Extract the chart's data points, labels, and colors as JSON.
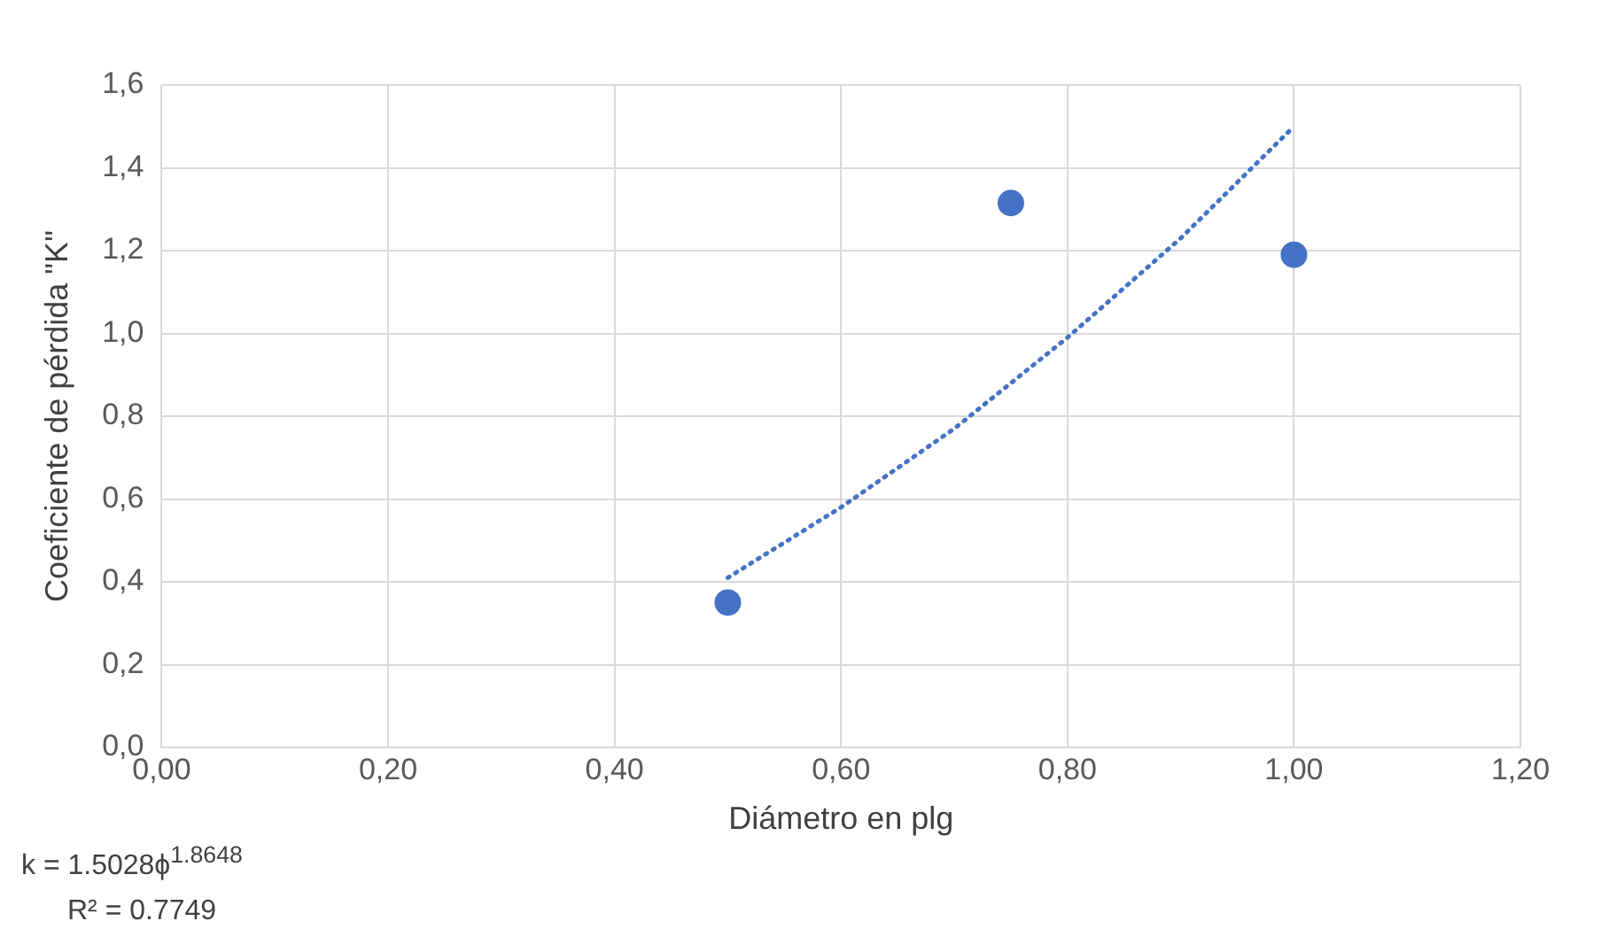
{
  "chart_data": {
    "type": "scatter",
    "xlabel": "Diámetro en plg",
    "ylabel": "Coeficiente de pérdida \"K\"",
    "xlim": [
      0,
      1.2
    ],
    "xticks": [
      {
        "value": 0,
        "label": "0,00"
      },
      {
        "value": 0.2,
        "label": "0,20"
      },
      {
        "value": 0.4,
        "label": "0,40"
      },
      {
        "value": 0.6,
        "label": "0,60"
      },
      {
        "value": 0.8,
        "label": "0,80"
      },
      {
        "value": 1,
        "label": "1,00"
      },
      {
        "value": 1.2,
        "label": "1,20"
      }
    ],
    "ylim": [
      0,
      1.6
    ],
    "yticks": [
      {
        "value": 0,
        "label": "0,0"
      },
      {
        "value": 0.2,
        "label": "0,2"
      },
      {
        "value": 0.4,
        "label": "0,4"
      },
      {
        "value": 0.6,
        "label": "0,6"
      },
      {
        "value": 0.8,
        "label": "0,8"
      },
      {
        "value": 1,
        "label": "1,0"
      },
      {
        "value": 1.2,
        "label": "1,2"
      },
      {
        "value": 1.4,
        "label": "1,4"
      },
      {
        "value": 1.6,
        "label": "1,6"
      }
    ],
    "grid": true,
    "marker": "circle",
    "series": [
      {
        "type": "scatter",
        "color": "#4472c4",
        "x": [
          0.5,
          0.75,
          1.0
        ],
        "values": [
          0.35,
          1.315,
          1.19
        ]
      },
      {
        "type": "line",
        "line_style": "dotted",
        "marker": "none",
        "color": "#4472c4",
        "x": [
          0.5,
          0.6,
          0.7,
          0.8,
          0.9,
          1.0
        ],
        "values": [
          0.41,
          0.58,
          0.77,
          0.99,
          1.23,
          1.5
        ]
      }
    ],
    "annotations": [
      "k = 1.5028ϕ$^{1.8648}$",
      "R² = 0.7749"
    ]
  }
}
